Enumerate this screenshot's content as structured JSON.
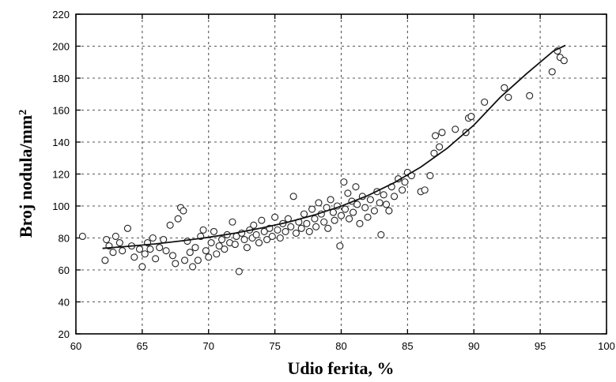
{
  "chart_data": {
    "type": "scatter",
    "title": "",
    "xlabel": "Udio ferita, %",
    "ylabel_main": "Broj nodula/mm",
    "ylabel_sup": "2",
    "xlim": [
      60,
      100
    ],
    "ylim": [
      20,
      220
    ],
    "xticks": [
      60,
      65,
      70,
      75,
      80,
      85,
      90,
      95,
      100
    ],
    "yticks": [
      20,
      40,
      60,
      80,
      100,
      120,
      140,
      160,
      180,
      200,
      220
    ],
    "grid": true,
    "series": [
      {
        "marker": "open-circle",
        "points": [
          [
            60.5,
            81
          ],
          [
            62.2,
            66
          ],
          [
            62.3,
            79
          ],
          [
            62.5,
            75
          ],
          [
            62.8,
            71
          ],
          [
            63.0,
            81
          ],
          [
            63.3,
            77
          ],
          [
            63.5,
            72
          ],
          [
            63.9,
            86
          ],
          [
            64.2,
            75
          ],
          [
            64.4,
            68
          ],
          [
            64.8,
            73
          ],
          [
            65.0,
            62
          ],
          [
            65.2,
            70
          ],
          [
            65.4,
            77
          ],
          [
            65.6,
            73
          ],
          [
            65.8,
            80
          ],
          [
            66.0,
            67
          ],
          [
            66.3,
            74
          ],
          [
            66.6,
            79
          ],
          [
            66.8,
            72
          ],
          [
            67.1,
            88
          ],
          [
            67.3,
            69
          ],
          [
            67.5,
            64
          ],
          [
            67.7,
            92
          ],
          [
            67.9,
            99
          ],
          [
            68.1,
            97
          ],
          [
            68.2,
            66
          ],
          [
            68.4,
            78
          ],
          [
            68.6,
            71
          ],
          [
            68.8,
            62
          ],
          [
            69.0,
            74
          ],
          [
            69.2,
            66
          ],
          [
            69.4,
            81
          ],
          [
            69.6,
            85
          ],
          [
            69.8,
            72
          ],
          [
            70.0,
            68
          ],
          [
            70.2,
            77
          ],
          [
            70.4,
            84
          ],
          [
            70.6,
            70
          ],
          [
            70.8,
            75
          ],
          [
            71.0,
            79
          ],
          [
            71.2,
            73
          ],
          [
            71.4,
            82
          ],
          [
            71.6,
            77
          ],
          [
            71.8,
            90
          ],
          [
            72.0,
            76
          ],
          [
            72.1,
            81
          ],
          [
            72.3,
            59
          ],
          [
            72.5,
            83
          ],
          [
            72.7,
            79
          ],
          [
            72.9,
            74
          ],
          [
            73.1,
            85
          ],
          [
            73.3,
            80
          ],
          [
            73.4,
            88
          ],
          [
            73.6,
            82
          ],
          [
            73.8,
            77
          ],
          [
            74.0,
            91
          ],
          [
            74.2,
            84
          ],
          [
            74.4,
            79
          ],
          [
            74.6,
            86
          ],
          [
            74.8,
            81
          ],
          [
            75.0,
            93
          ],
          [
            75.2,
            85
          ],
          [
            75.4,
            80
          ],
          [
            75.6,
            89
          ],
          [
            75.8,
            84
          ],
          [
            76.0,
            92
          ],
          [
            76.2,
            87
          ],
          [
            76.4,
            106
          ],
          [
            76.6,
            83
          ],
          [
            76.8,
            90
          ],
          [
            77.0,
            86
          ],
          [
            77.2,
            95
          ],
          [
            77.4,
            89
          ],
          [
            77.6,
            84
          ],
          [
            77.8,
            98
          ],
          [
            78.0,
            92
          ],
          [
            78.1,
            87
          ],
          [
            78.3,
            102
          ],
          [
            78.5,
            95
          ],
          [
            78.7,
            90
          ],
          [
            78.9,
            99
          ],
          [
            79.0,
            86
          ],
          [
            79.2,
            104
          ],
          [
            79.4,
            96
          ],
          [
            79.5,
            91
          ],
          [
            79.7,
            100
          ],
          [
            79.9,
            75
          ],
          [
            80.0,
            94
          ],
          [
            80.2,
            115
          ],
          [
            80.3,
            98
          ],
          [
            80.5,
            108
          ],
          [
            80.6,
            92
          ],
          [
            80.8,
            103
          ],
          [
            80.9,
            96
          ],
          [
            81.1,
            112
          ],
          [
            81.2,
            101
          ],
          [
            81.4,
            89
          ],
          [
            81.6,
            106
          ],
          [
            81.8,
            99
          ],
          [
            82.0,
            93
          ],
          [
            82.2,
            104
          ],
          [
            82.5,
            97
          ],
          [
            82.7,
            109
          ],
          [
            82.9,
            102
          ],
          [
            83.0,
            82
          ],
          [
            83.2,
            107
          ],
          [
            83.4,
            101
          ],
          [
            83.6,
            97
          ],
          [
            83.8,
            112
          ],
          [
            84.0,
            106
          ],
          [
            84.3,
            117
          ],
          [
            84.6,
            110
          ],
          [
            84.8,
            115
          ],
          [
            85.0,
            121
          ],
          [
            85.3,
            119
          ],
          [
            86.0,
            109
          ],
          [
            86.3,
            110
          ],
          [
            86.7,
            119
          ],
          [
            87.0,
            133
          ],
          [
            87.1,
            144
          ],
          [
            87.4,
            137
          ],
          [
            87.6,
            146
          ],
          [
            88.6,
            148
          ],
          [
            89.4,
            146
          ],
          [
            89.6,
            155
          ],
          [
            89.8,
            156
          ],
          [
            90.8,
            165
          ],
          [
            92.3,
            174
          ],
          [
            92.6,
            168
          ],
          [
            94.2,
            169
          ],
          [
            95.9,
            184
          ],
          [
            96.3,
            197
          ],
          [
            96.5,
            193
          ],
          [
            96.8,
            191
          ]
        ]
      }
    ],
    "fit_curve": [
      [
        62,
        73.5
      ],
      [
        64,
        74.8
      ],
      [
        66,
        76.3
      ],
      [
        68,
        78.2
      ],
      [
        70,
        80.4
      ],
      [
        72,
        83.0
      ],
      [
        74,
        86.2
      ],
      [
        76,
        89.9
      ],
      [
        78,
        94.4
      ],
      [
        80,
        99.9
      ],
      [
        82,
        106.5
      ],
      [
        84,
        114.6
      ],
      [
        86,
        124.4
      ],
      [
        88,
        136.2
      ],
      [
        90,
        150.6
      ],
      [
        92,
        168.1
      ],
      [
        94,
        183.0
      ],
      [
        96,
        197.0
      ],
      [
        96.9,
        200.5
      ]
    ]
  }
}
